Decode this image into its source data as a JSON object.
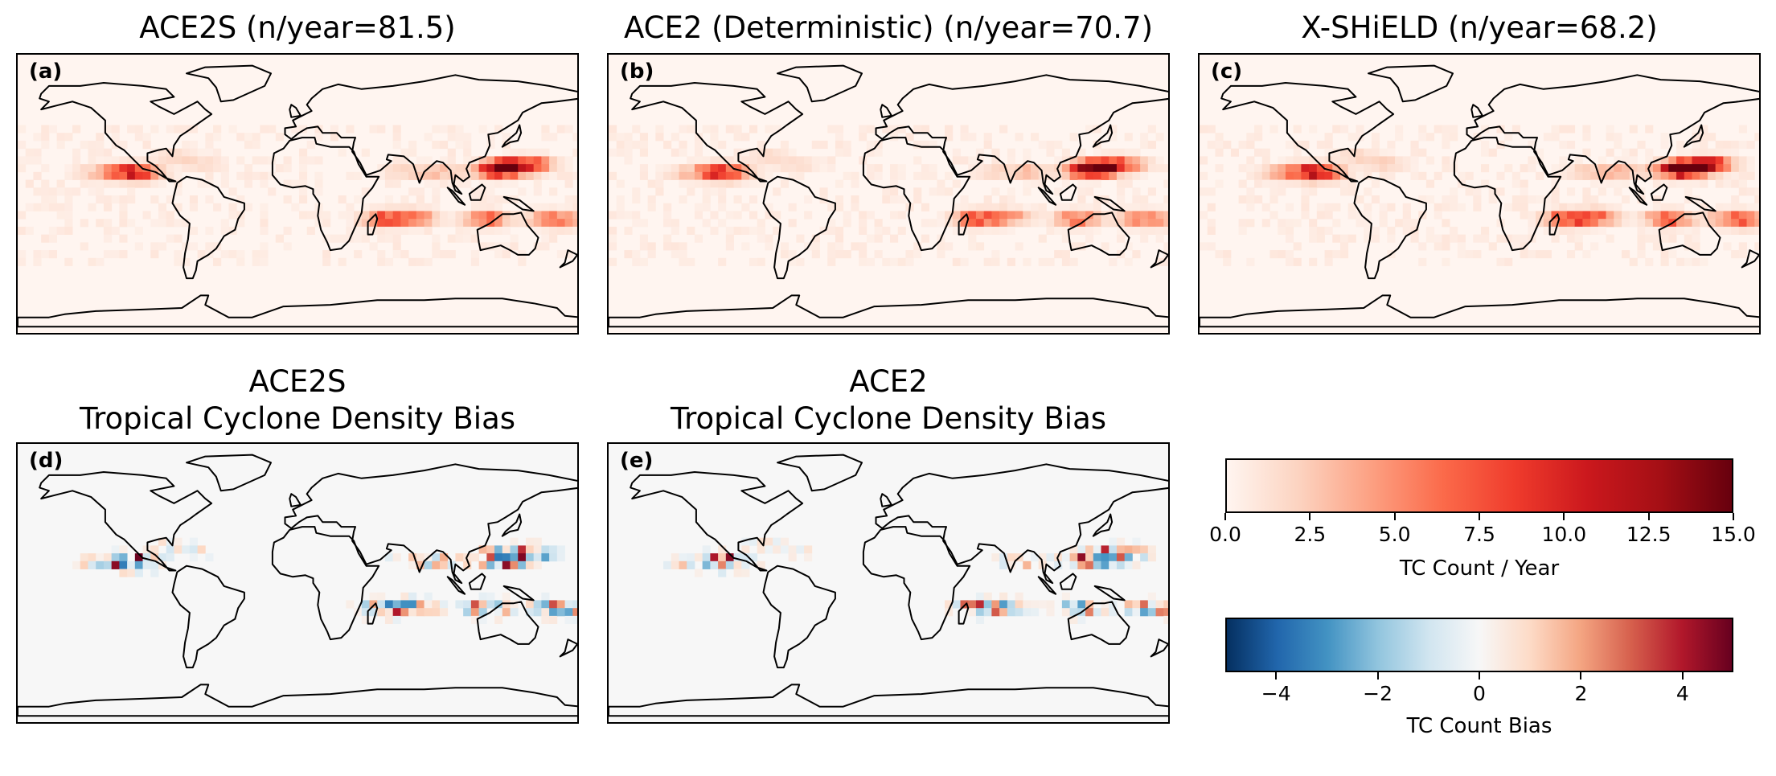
{
  "chart_data": [
    {
      "type": "heatmap",
      "panel": "(a)",
      "title": "ACE2S (n/year=81.5)",
      "colormap": "Reds",
      "colorbar_label": "TC Count / Year",
      "value_range": [
        0,
        15
      ]
    },
    {
      "type": "heatmap",
      "panel": "(b)",
      "title": "ACE2 (Deterministic) (n/year=70.7)",
      "colormap": "Reds",
      "colorbar_label": "TC Count / Year",
      "value_range": [
        0,
        15
      ]
    },
    {
      "type": "heatmap",
      "panel": "(c)",
      "title": "X-SHiELD (n/year=68.2)",
      "colormap": "Reds",
      "colorbar_label": "TC Count / Year",
      "value_range": [
        0,
        15
      ]
    },
    {
      "type": "heatmap",
      "panel": "(d)",
      "title": "ACE2S\nTropical Cyclone Density Bias",
      "colormap": "RdBu_r",
      "colorbar_label": "TC Count Bias",
      "value_range": [
        -5,
        5
      ]
    },
    {
      "type": "heatmap",
      "panel": "(e)",
      "title": "ACE2\nTropical Cyclone Density Bias",
      "colormap": "RdBu_r",
      "colorbar_label": "TC Count Bias",
      "value_range": [
        -5,
        5
      ]
    }
  ],
  "titles": {
    "a": "ACE2S (n/year=81.5)",
    "b": "ACE2 (Deterministic) (n/year=70.7)",
    "c": "X-SHiELD (n/year=68.2)",
    "d1": "ACE2S",
    "d2": "Tropical Cyclone Density Bias",
    "e1": "ACE2",
    "e2": "Tropical Cyclone Density Bias"
  },
  "panel_labels": {
    "a": "(a)",
    "b": "(b)",
    "c": "(c)",
    "d": "(d)",
    "e": "(e)"
  },
  "colorbar_counts": {
    "ticks": [
      "0.0",
      "2.5",
      "5.0",
      "7.5",
      "10.0",
      "12.5",
      "15.0"
    ],
    "tick_values": [
      0,
      2.5,
      5,
      7.5,
      10,
      12.5,
      15
    ],
    "range": [
      0,
      15
    ],
    "label": "TC Count / Year"
  },
  "colorbar_bias": {
    "ticks": [
      "−4",
      "−2",
      "0",
      "2",
      "4"
    ],
    "tick_values": [
      -4,
      -2,
      0,
      2,
      4
    ],
    "range": [
      -5,
      5
    ],
    "label": "TC Count Bias"
  }
}
